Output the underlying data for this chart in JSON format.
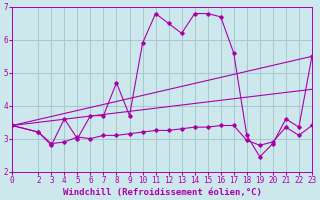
{
  "xlabel": "Windchill (Refroidissement éolien,°C)",
  "bg_color": "#cde8ec",
  "grid_color": "#a8c8cc",
  "line_color": "#aa00aa",
  "xmin": 0,
  "xmax": 23,
  "ymin": 2,
  "ymax": 7,
  "series1_x": [
    0,
    2,
    3,
    4,
    5,
    6,
    7,
    8,
    9,
    10,
    11,
    12,
    13,
    14,
    15,
    16,
    17,
    18,
    19,
    20,
    21,
    22,
    23
  ],
  "series1_y": [
    3.4,
    3.2,
    2.8,
    3.6,
    3.0,
    3.7,
    3.7,
    4.7,
    3.7,
    5.9,
    6.8,
    6.5,
    6.2,
    6.8,
    6.8,
    6.7,
    5.6,
    3.1,
    2.45,
    2.85,
    3.6,
    3.35,
    5.5
  ],
  "series2_x": [
    0,
    2,
    3,
    4,
    5,
    6,
    7,
    8,
    9,
    10,
    11,
    12,
    13,
    14,
    15,
    16,
    17,
    18,
    19,
    20,
    21,
    22,
    23
  ],
  "series2_y": [
    3.4,
    3.2,
    2.85,
    2.9,
    3.05,
    3.0,
    3.1,
    3.1,
    3.15,
    3.2,
    3.25,
    3.25,
    3.3,
    3.35,
    3.35,
    3.4,
    3.4,
    2.95,
    2.8,
    2.9,
    3.35,
    3.1,
    3.4
  ],
  "series3_x": [
    0,
    23
  ],
  "series3_y": [
    3.4,
    5.5
  ],
  "series4_x": [
    0,
    23
  ],
  "series4_y": [
    3.4,
    4.5
  ],
  "xticks": [
    0,
    2,
    3,
    4,
    5,
    6,
    7,
    8,
    9,
    10,
    11,
    12,
    13,
    14,
    15,
    16,
    17,
    18,
    19,
    20,
    21,
    22,
    23
  ],
  "yticks": [
    2,
    3,
    4,
    5,
    6,
    7
  ],
  "tick_fontsize": 5.5,
  "label_fontsize": 6.5
}
